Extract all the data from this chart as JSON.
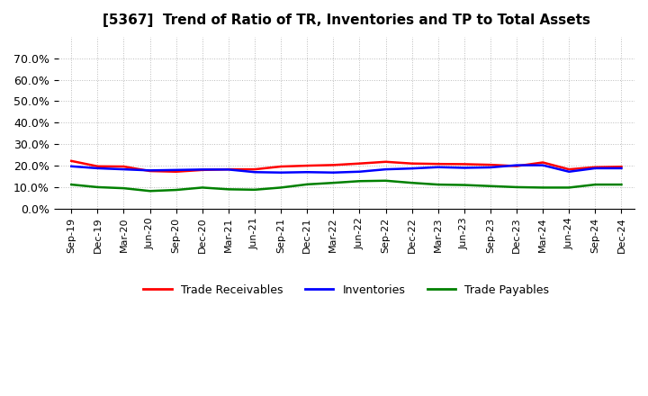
{
  "title": "[5367]  Trend of Ratio of TR, Inventories and TP to Total Assets",
  "x_labels": [
    "Sep-19",
    "Dec-19",
    "Mar-20",
    "Jun-20",
    "Sep-20",
    "Dec-20",
    "Mar-21",
    "Jun-21",
    "Sep-21",
    "Dec-21",
    "Mar-22",
    "Jun-22",
    "Sep-22",
    "Dec-22",
    "Mar-23",
    "Jun-23",
    "Sep-23",
    "Dec-23",
    "Mar-24",
    "Jun-24",
    "Sep-24",
    "Dec-24"
  ],
  "trade_receivables": [
    0.222,
    0.197,
    0.196,
    0.175,
    0.172,
    0.18,
    0.183,
    0.183,
    0.196,
    0.2,
    0.203,
    0.21,
    0.218,
    0.21,
    0.208,
    0.207,
    0.204,
    0.198,
    0.215,
    0.183,
    0.193,
    0.195
  ],
  "inventories": [
    0.197,
    0.188,
    0.183,
    0.178,
    0.18,
    0.182,
    0.182,
    0.17,
    0.168,
    0.17,
    0.168,
    0.172,
    0.183,
    0.187,
    0.193,
    0.19,
    0.192,
    0.202,
    0.202,
    0.172,
    0.188,
    0.188
  ],
  "trade_payables": [
    0.112,
    0.1,
    0.095,
    0.082,
    0.087,
    0.098,
    0.09,
    0.088,
    0.098,
    0.113,
    0.12,
    0.128,
    0.13,
    0.12,
    0.112,
    0.11,
    0.105,
    0.1,
    0.098,
    0.098,
    0.112,
    0.112
  ],
  "ylim": [
    0.0,
    0.8
  ],
  "yticks": [
    0.0,
    0.1,
    0.2,
    0.3,
    0.4,
    0.5,
    0.6,
    0.7
  ],
  "color_tr": "#ff0000",
  "color_inv": "#0000ff",
  "color_tp": "#008000",
  "bg_color": "#ffffff",
  "grid_color": "#aaaaaa",
  "legend_labels": [
    "Trade Receivables",
    "Inventories",
    "Trade Payables"
  ]
}
